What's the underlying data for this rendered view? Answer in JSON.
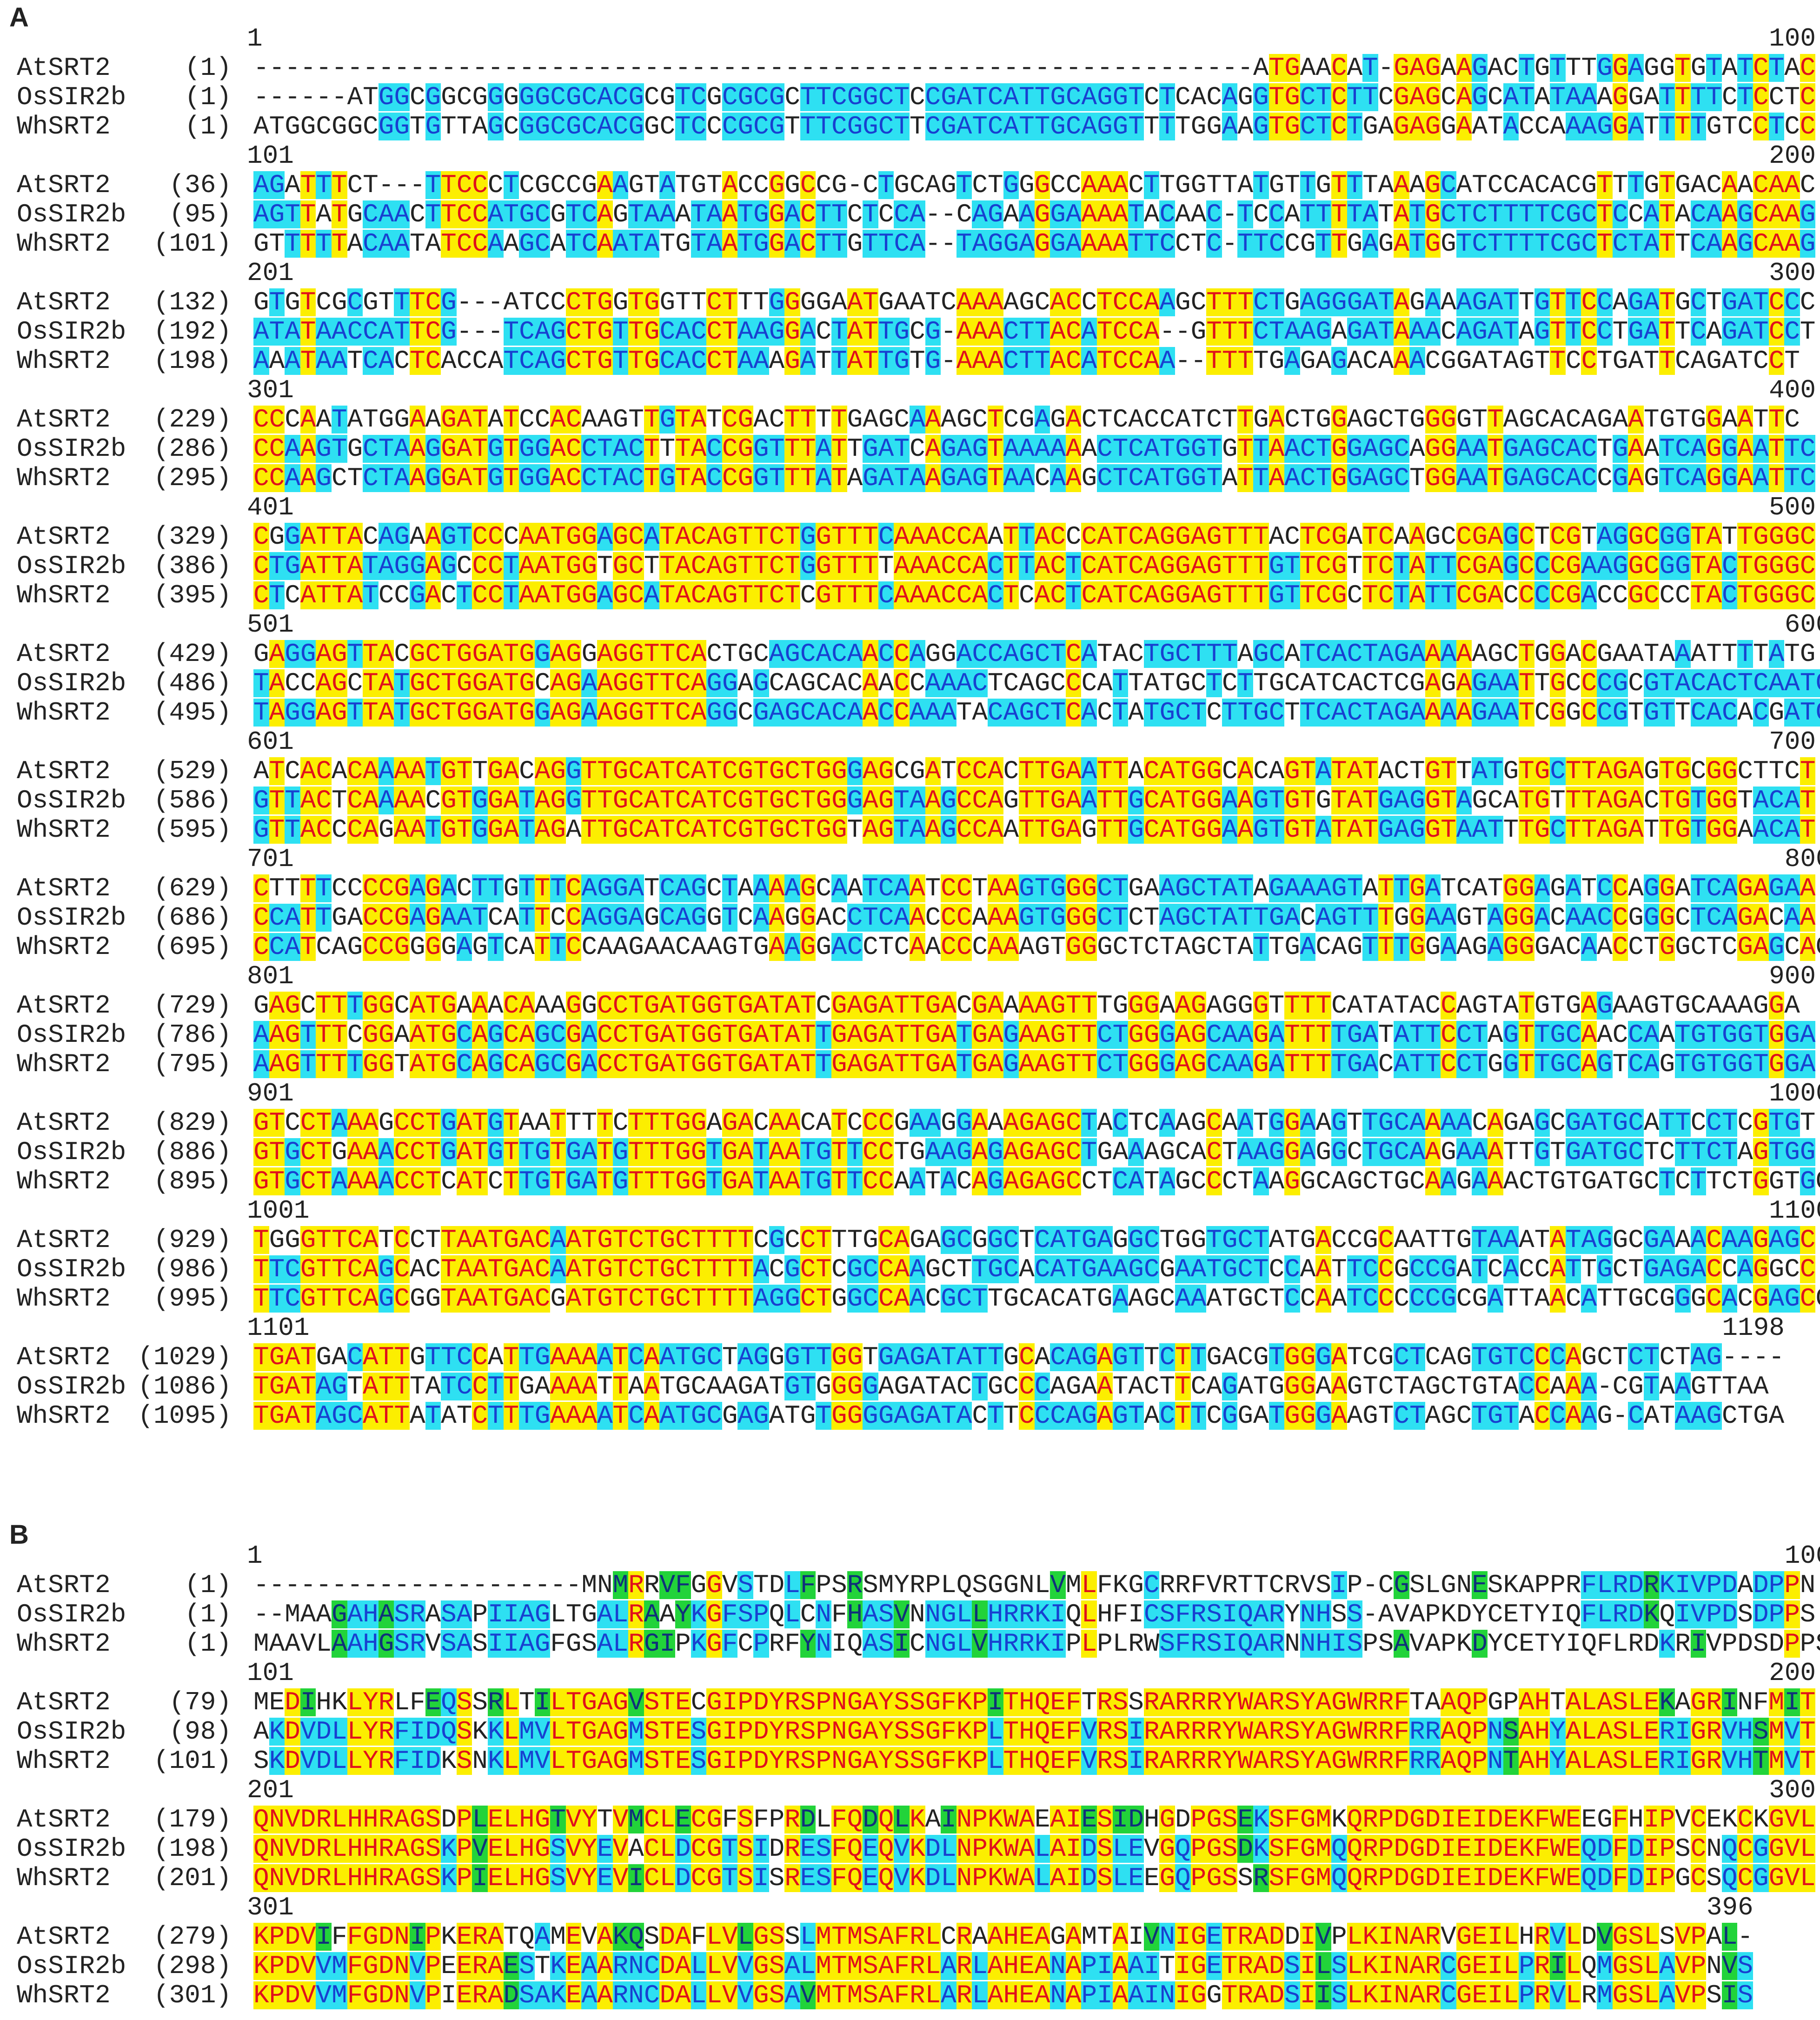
{
  "panels": [
    {
      "label": "A",
      "blocks": [
        {
          "start": "1",
          "end": "100",
          "rows": [
            {
              "name": "AtSRT2",
              "pos": "(1)",
              "seq": "----------------------------------------------------------------ATGAACAT-GAGAAGACTGTTTGGAGGTGTATCTAC"
            },
            {
              "name": "OsSIR2b",
              "pos": "(1)",
              "seq": "------ATGGCGGCGGGGGCGCACGCGTCGCGCGCTTCGGCTCCGATCATTGCAGGTCTCACAGGTGCTCTTCGAGCAGCATATAAAGGATTTTCTCCTC"
            },
            {
              "name": "WhSRT2",
              "pos": "(1)",
              "seq": "ATGGCGGCGGTGTTAGCGGCGCACGGCTCCCGCGTTTCGGCTTCGATCATTGCAGGTTTTGGAAGTGCTCTGAGAGGAATACCAAAGGATTTTGTCCTCC"
            }
          ]
        },
        {
          "start": "101",
          "end": "200",
          "rows": [
            {
              "name": "AtSRT2",
              "pos": "(36)",
              "seq": "AGATTTCT---TTCCCTCGCCGAAGTATGTACCGGCCG-CTGCAGTCTGGGCCAAACTTGGTTATGTTGTTTAAAGCATCCACACGTTTGTGACAACAAC"
            },
            {
              "name": "OsSIR2b",
              "pos": "(95)",
              "seq": "AGTTATGCAACTTCCATGCGTCAGTAAATAATGGACTTCTCCA--CAGAAGGAAAATACAAC-TCCATTTTATATGCTCTTTTCGCTCCATACAAGCAAG"
            },
            {
              "name": "WhSRT2",
              "pos": "(101)",
              "seq": "GTTTTTACAATATCCAAGCATCAATATGTAATGGACTTGTTCA--TAGGAGGAAAATTCCTC-TTCCGTTGAGATGGTCTTTTCGCTCTATTCAAGCAAG"
            }
          ]
        },
        {
          "start": "201",
          "end": "300",
          "rows": [
            {
              "name": "AtSRT2",
              "pos": "(132)",
              "seq": "GTGTCGCGTTTCG---ATCCCTGGTGGTTCTTTGGGGAATGAATCAAAAGCACCTCCAAGCTTTCTGAGGGATAGAAAGATTGTTCCAGATGCTGATCCC"
            },
            {
              "name": "OsSIR2b",
              "pos": "(192)",
              "seq": "ATATAACCATTCG---TCAGCTGTTGCACCTAAGGACTATTGCG-AAACTTACATCCA--GTTTCTAAGAGATAAACAGATAGTTCCTGATTCAGATCCT"
            },
            {
              "name": "WhSRT2",
              "pos": "(198)",
              "seq": "AAATAATCACTCACCATCAGCTGTTGCACCTAAAGATTATTGTG-AAACTTACATCCAA--TTTTGAGAGACAAACGGATAGTTCCTGATTCAGATCCT"
            }
          ]
        },
        {
          "start": "301",
          "end": "400",
          "rows": [
            {
              "name": "AtSRT2",
              "pos": "(229)",
              "seq": "CCCAATATGGAAGATATCCACAAGTTGTATCGACTTTTGAGCAAAGCTCGAGACTCACCATCTTGACTGGAGCTGGGGTTAGCACAGAATGTGGAATTC"
            },
            {
              "name": "OsSIR2b",
              "pos": "(286)",
              "seq": "CCAAGTGCTAAGGATGTGGACCTACTTTACCGGTTTATTGATCAGAGTAAAAAACTCATGGTGTTAACTGGAGCAGGAATGAGCACTGAATCAGGAATTC"
            },
            {
              "name": "WhSRT2",
              "pos": "(295)",
              "seq": "CCAAGCTCTAAGGATGTGGACCTACTGTACCGGTTTATAGATAAGAGTAACAAGCTCATGGTATTAACTGGAGCTGGAATGAGCACCGAGTCAGGAATTC"
            }
          ]
        },
        {
          "start": "401",
          "end": "500",
          "rows": [
            {
              "name": "AtSRT2",
              "pos": "(329)",
              "seq": "CGGATTACAGAAGTCCCAATGGAGCATACAGTTCTGGTTTCAAACCAATTACCCATCAGGAGTTTACTCGATCAAGCCGAGCTCGTAGGCGGTATTGGGC"
            },
            {
              "name": "OsSIR2b",
              "pos": "(386)",
              "seq": "CTGATTATAGGAGCCCTAATGGTGCTTACAGTTCTGGTTTTAAACCACTTACTCATCAGGAGTTTGTTCGTTCTATTCGAGCCCGAAGGCGGTACTGGGC"
            },
            {
              "name": "WhSRT2",
              "pos": "(395)",
              "seq": "CTCATTATCCGACTCCTAATGGAGCATACAGTTCTCGTTTCAAACCACTCACTCATCAGGAGTTTGTTCGCTCTATTCGACCCCGACCGCCCTACTGGGC"
            }
          ]
        },
        {
          "start": "501",
          "end": "600",
          "rows": [
            {
              "name": "AtSRT2",
              "pos": "(429)",
              "seq": "GAGGAGTTACGCTGGATGGAGGAGGTTCACTGCAGCACAACCAGGACCAGCTCATACTGCTTTAGCATCACTAGAAAAAGCTGGACGAATAAATTTTATG"
            },
            {
              "name": "OsSIR2b",
              "pos": "(486)",
              "seq": "TACCAGCTATGCTGGATGCAGAAGGTTCAGGAGCAGCACAACCAAACTCAGCCCATTATGCTCTTGCATCACTCGAGAGAATTGCCCGCGTACACTCAATG"
            },
            {
              "name": "WhSRT2",
              "pos": "(495)",
              "seq": "TAGGAGTTATGCTGGATGGAGAAGGTTCAGGCGAGCACAACCAAATACAGCTCACTATGCTCTTGCTTCACTAGAAAAGAATCGGCCGTGTTCACACGATG"
            }
          ]
        },
        {
          "start": "601",
          "end": "700",
          "rows": [
            {
              "name": "AtSRT2",
              "pos": "(529)",
              "seq": "ATCACACAAAATGTTGACAGGTTGCATCATCGTGCTGGGAGCGATCCACTTGAATTACATGGCACAGTATATACTGTTATGTGCTTAGAGTGCGGCTTCT"
            },
            {
              "name": "OsSIR2b",
              "pos": "(586)",
              "seq": "GTTACTCAAAACGTGGATAGGTTGCATCATCGTGCTGGGAGTAAGCCAGTTGAATTGCATGGAAGTGTGTATGAGGTAGCATGTTTAGACTGTGGTACAT"
            },
            {
              "name": "WhSRT2",
              "pos": "(595)",
              "seq": "GTTACCCAGAATGTGGATAGATTGCATCATCGTGCTGGTAGTAAGCCAATTGAGTTGCATGGAAGTGTATATGAGGTAATTTGCTTAGATTGTGGAACAT"
            }
          ]
        },
        {
          "start": "701",
          "end": "800",
          "rows": [
            {
              "name": "AtSRT2",
              "pos": "(629)",
              "seq": "CTTTTCCCCGAGACTTGTTTCAGGATCAGCTAAAAGCAATCAATCCTAAGTGGGCTGAAGCTATAGAAAGTATTGATCATGGAGATCCAGGATCAGAGAA"
            },
            {
              "name": "OsSIR2b",
              "pos": "(686)",
              "seq": "CCATTGACCGAGAATCATTCCAGGAGCAGGTCAAGGACCTCAACCCAAAGTGGGCTCTAGCTATTGACAGTTTGGAAGTAGGACAACCGGGCTCAGACAA"
            },
            {
              "name": "WhSRT2",
              "pos": "(695)",
              "seq": "CCATCAGCCGGGGAGTCATTCCAAGAACAAGTGAAGGACCTCAACCCAAAGTGGGCTCTAGCTATTGACAGTTTGGAAGAGGGACAACCTGGCTCGAGCAG"
            }
          ]
        },
        {
          "start": "801",
          "end": "900",
          "rows": [
            {
              "name": "AtSRT2",
              "pos": "(729)",
              "seq": "GAGCTTTGGCATGAAACAAAGGCCTGATGGTGATATCGAGATTGACGAAAAGTTTGGGAAGAGGGTTTTCATATACCAGTATGTGAGAAGTGCAAAGGA"
            },
            {
              "name": "OsSIR2b",
              "pos": "(786)",
              "seq": "AAGTTTCGGAATGCAGCAGCGACCTGATGGTGATATTGAGATTGATGAGAAGTTCTGGGAGCAAGATTTTGATATTCCTAGTTGCAACCAATGTGGTGGA"
            },
            {
              "name": "WhSRT2",
              "pos": "(795)",
              "seq": "AAGTTTTGGTATGCAGCAGCGACCTGATGGTGATATTGAGATTGATGAGAAGTTCTGGGAGCAAGATTTTGACATTCCTGGTTGCAGTCAGTGTGGTGGA"
            }
          ]
        },
        {
          "start": "901",
          "end": "1000",
          "rows": [
            {
              "name": "AtSRT2",
              "pos": "(829)",
              "seq": "GTCCTAAAGCCTGATGTAATTTTCTTTGGAGACAACATCCCGAAGGAAAGAGCTACTCAAGCAATGGAAGTTGCAAAACAGAGCGATGCATTCCTCGTGT"
            },
            {
              "name": "OsSIR2b",
              "pos": "(886)",
              "seq": "GTGCTGAAACCTGATGTTGTGATGTTTGGTGATAATGTTCCTGAAGAGAGAGCTGAAAGCACTAAGGAGGCTGCAAGAAATTGTGATGCTCTTCTAGTGG"
            },
            {
              "name": "WhSRT2",
              "pos": "(895)",
              "seq": "GTGCTAAAACCTCATCTTGTGATGTTTGGTGATAATGTTCCAATACAGAGAGCCTCATAGCCCTAAGGCAGCTGCAAGAAACTGTGATGCTCTTCTGGTGG"
            }
          ]
        },
        {
          "start": "1001",
          "end": "1100",
          "rows": [
            {
              "name": "AtSRT2",
              "pos": "(929)",
              "seq": "TGGGTTCATCCTTAATGACAATGTCTGCTTTTCGCCTTTGCAGAGCGGCTCATGAGGCTGGTGCTATGACCGCAATTGTAAATATAGGCGAAACAAGAGC"
            },
            {
              "name": "OsSIR2b",
              "pos": "(986)",
              "seq": "TTCGTTCAGCACTAATGACAATGTCTGCTTTTACGCTCGCCAAGCTTGCACATGAAGCGAATGCTCCAATTCCGCCGATCACCATTGCTGAGACCAGGCC"
            },
            {
              "name": "WhSRT2",
              "pos": "(995)",
              "seq": "TTCGTTCAGCGGTAATGACGATGTCTGCTTTTAGGCTGGCCAACGCTTGCACATGAAGCAAATGCTCCAATCCCCCGCGATTAACATTGCGGGCACGAGCC"
            }
          ]
        },
        {
          "start": "1101",
          "end": "1198",
          "rows": [
            {
              "name": "AtSRT2",
              "pos": "(1029)",
              "seq": "TGATGACATTGTTCCATTGAAAATCAATGCTAGGGTTGGTGAGATATTGCACAGAGTTCTTGACGTGGGATCGCTCAGTGTCCCAGCTCTCTAG----"
            },
            {
              "name": "OsSIR2b",
              "pos": "(1086)",
              "seq": "TGATAGTATTTATCCTTGAAAATTAATGCAAGATGTGGGGAGATACTGCCCAGAATACTTCAGATGGGAAGTCTAGCTGTACCAAA-CGTAAGTTAA"
            },
            {
              "name": "WhSRT2",
              "pos": "(1095)",
              "seq": "TGATAGCATTATATCTTTGAAAATCAATGCGAGATGTGGGGAGATACTTCCCAGAGTACTTCGGATGGGAAGTCTAGCTGTACCAAG-CATAAGCTGA"
            }
          ]
        }
      ]
    },
    {
      "label": "B",
      "blocks": [
        {
          "start": "1",
          "end": "100",
          "rows": [
            {
              "name": "AtSRT2",
              "pos": "(1)",
              "seq": "---------------------MNMRRVFGGVSTDLFPSRSMYRPLQSGGNLVMLFKGCRRFVRTTCRVSIP-CGSLGNESKAPPRFLRDRKIVPDADPPN"
            },
            {
              "name": "OsSIR2b",
              "pos": "(1)",
              "seq": "--MAAGAHASRASAPIIAGLTGALRAAYKGFSPQLCNFHASVNNGLLHRRKIQLHFICSFRSIQARYNHSS-AVAPKDYCETYIQFLRDKQIVPDSDPPS"
            },
            {
              "name": "WhSRT2",
              "pos": "(1)",
              "seq": "MAAVLAAHGSRVSASIIAGFGSALRGIPKGFCPRFYNIQASICNGLVHRRKIPLPLRWSFRSIQARNNHISPSAVAPKDYCETYIQFLRDKRIVPDSDPPS"
            }
          ]
        },
        {
          "start": "101",
          "end": "200",
          "rows": [
            {
              "name": "AtSRT2",
              "pos": "(79)",
              "seq": "MEDIHKLYRLFEQSSRLTILTGAGVSTECGIPDYRSPNGAYSSGFKPITHQEFTRSSRARRRYWARSYAGWRRFTAAQPGPAHTALASLEKAGRINFMIT"
            },
            {
              "name": "OsSIR2b",
              "pos": "(98)",
              "seq": "AKDVDLLYRFIDQSKKLMVLTGAGMSTESGIPDYRSPNGAYSSGFKPLTHQEFVRSIRARRRYWARSYAGWRRFRRAQPNSAHYALASLERIGRVHSMVT"
            },
            {
              "name": "WhSRT2",
              "pos": "(101)",
              "seq": "SKDVDLLYRFIDKSNKLMVLTGAGMSTESGIPDYRSPNGAYSSGFKPLTHQEFVRSIRARRRYWARSYAGWRRFRRAQPNTAHYALASLERIGRVHTMVT"
            }
          ]
        },
        {
          "start": "201",
          "end": "300",
          "rows": [
            {
              "name": "AtSRT2",
              "pos": "(179)",
              "seq": "QNVDRLHHRAGSDPLELHGTVYTVMCLECGFSFPRDLFQDQLKAINPKWAEAIESIDHGDPGSEKSFGMKQRPDGDIEIDEKFWEEGFHIPVCEKCKGVL"
            },
            {
              "name": "OsSIR2b",
              "pos": "(198)",
              "seq": "QNVDRLHHRAGSKPVELHGSVYEVACLDCGTSIDRESFQEQVKDLNPKWALAIDSLEVGQPGSDKSFGMQQRPDGDIEIDEKFWEQDFDIPSCNQCGGVL"
            },
            {
              "name": "WhSRT2",
              "pos": "(201)",
              "seq": "QNVDRLHHRAGSKPIELHGSVYEVICLDCGTSISRESFQEQVKDLNPKWALAIDSLEEGQPGSSRSFGMQQRPDGDIEIDEKFWEQDFDIPGCSQCGGVL"
            }
          ]
        },
        {
          "start": "301",
          "end": "396",
          "rows": [
            {
              "name": "AtSRT2",
              "pos": "(279)",
              "seq": "KPDVIFFGDNIPKERATQAMEVAKQSDAFLVLGSSLMTMSAFRLCRAAHEAGAMTAIVNIGETRADDIVPLKINARVGEILHRVLDVGSLSVPAL-"
            },
            {
              "name": "OsSIR2b",
              "pos": "(298)",
              "seq": "KPDVVMFGDNVPEERAESTKEAARNCDALLVVGSALMTMSAFRLARLAHEANAPIAAITIGETRADSILSLKINARCGEILPRILQMGSLAVPNVS"
            },
            {
              "name": "WhSRT2",
              "pos": "(301)",
              "seq": "KPDVVMFGDNVPIERADSAKEAARNCDALLVVGSAVMTMSAFRLARLAHEANAPIAAINIGGTRADSIISLKINARCGEILPRVLRMGSLAVPSIS"
            }
          ]
        }
      ]
    }
  ]
}
